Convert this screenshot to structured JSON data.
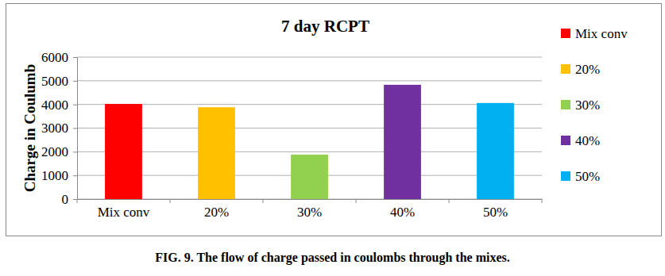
{
  "chart_data": {
    "type": "bar",
    "title": "7 day RCPT",
    "y_label": "Charge in Coulumb",
    "caption": "FIG. 9. The flow of charge passed in coulombs through the mixes.",
    "categories": [
      "Mix conv",
      "20%",
      "30%",
      "40%",
      "50%"
    ],
    "values": [
      4020,
      3880,
      1880,
      4830,
      4060
    ],
    "colors": [
      "#ff0000",
      "#ffc000",
      "#92d050",
      "#7030a0",
      "#00b0f0"
    ],
    "ylim": [
      0,
      6000
    ],
    "yticks": [
      0,
      1000,
      2000,
      3000,
      4000,
      5000,
      6000
    ],
    "grid": true,
    "legend": "right"
  }
}
